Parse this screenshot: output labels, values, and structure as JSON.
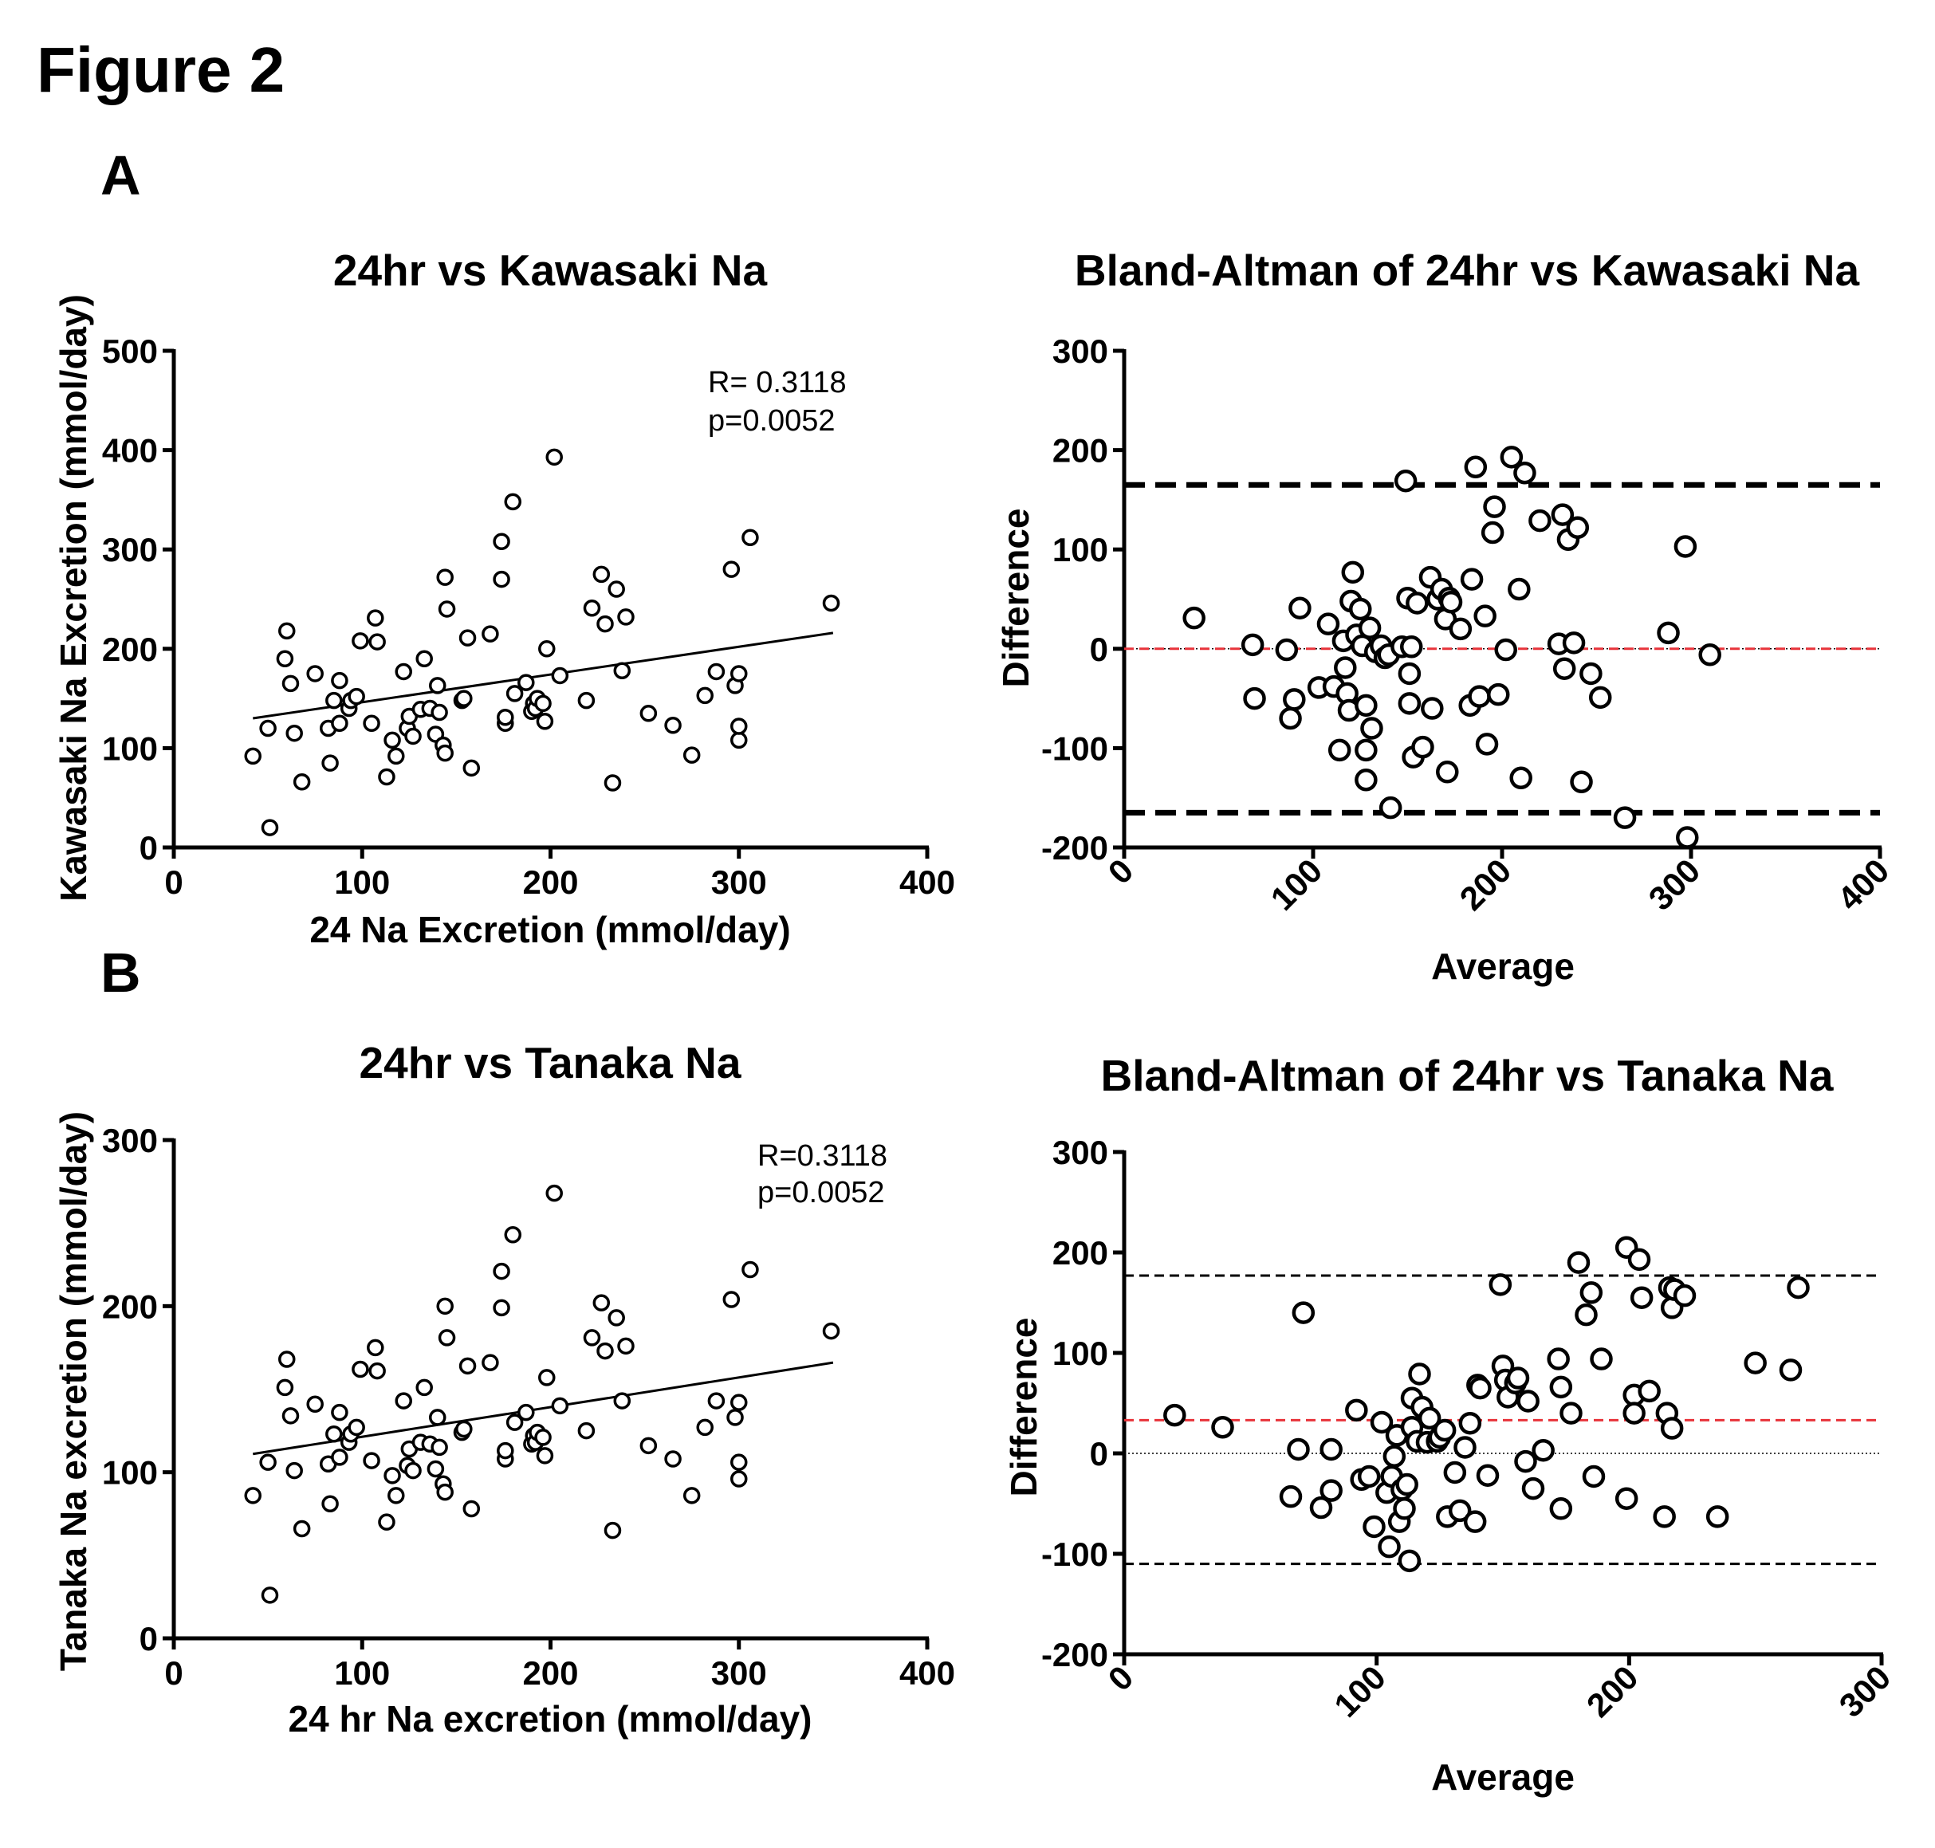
{
  "figure": {
    "title": "Figure 2",
    "panels": [
      "A",
      "B"
    ]
  },
  "chart_data": [
    {
      "id": "scatterA",
      "type": "scatter",
      "title": "24hr vs Kawasaki Na",
      "xlabel": "24 Na Excretion (mmol/day)",
      "ylabel": "Kawasaki Na Excretion (mmol/day)",
      "xlim": [
        0,
        400
      ],
      "ylim": [
        0,
        500
      ],
      "xticks": [
        0,
        100,
        200,
        300,
        400
      ],
      "yticks": [
        0,
        100,
        200,
        300,
        400,
        500
      ],
      "annotations": [
        "R= 0.3118",
        "p=0.0052"
      ],
      "regression": {
        "x": [
          42,
          350
        ],
        "y": [
          130,
          216
        ]
      },
      "points": [
        [
          42,
          92
        ],
        [
          50,
          120
        ],
        [
          51,
          20
        ],
        [
          59,
          190
        ],
        [
          60,
          218
        ],
        [
          62,
          165
        ],
        [
          64,
          115
        ],
        [
          68,
          66
        ],
        [
          75,
          175
        ],
        [
          82,
          120
        ],
        [
          83,
          85
        ],
        [
          85,
          148
        ],
        [
          88,
          125
        ],
        [
          88,
          168
        ],
        [
          93,
          140
        ],
        [
          94,
          148
        ],
        [
          97,
          152
        ],
        [
          99,
          208
        ],
        [
          105,
          125
        ],
        [
          107,
          231
        ],
        [
          108,
          207
        ],
        [
          113,
          71
        ],
        [
          116,
          108
        ],
        [
          118,
          92
        ],
        [
          122,
          177
        ],
        [
          124,
          120
        ],
        [
          125,
          132
        ],
        [
          127,
          112
        ],
        [
          131,
          139
        ],
        [
          133,
          190
        ],
        [
          136,
          140
        ],
        [
          139,
          114
        ],
        [
          140,
          163
        ],
        [
          141,
          136
        ],
        [
          143,
          103
        ],
        [
          144,
          95
        ],
        [
          144,
          272
        ],
        [
          145,
          240
        ],
        [
          153,
          148
        ],
        [
          154,
          150
        ],
        [
          156,
          211
        ],
        [
          158,
          80
        ],
        [
          168,
          215
        ],
        [
          174,
          308
        ],
        [
          174,
          270
        ],
        [
          176,
          125
        ],
        [
          176,
          131
        ],
        [
          180,
          348
        ],
        [
          181,
          155
        ],
        [
          187,
          166
        ],
        [
          190,
          137
        ],
        [
          191,
          145
        ],
        [
          192,
          140
        ],
        [
          193,
          150
        ],
        [
          196,
          145
        ],
        [
          197,
          127
        ],
        [
          198,
          200
        ],
        [
          202,
          393
        ],
        [
          205,
          173
        ],
        [
          219,
          148
        ],
        [
          222,
          241
        ],
        [
          227,
          275
        ],
        [
          229,
          225
        ],
        [
          233,
          65
        ],
        [
          235,
          260
        ],
        [
          238,
          178
        ],
        [
          240,
          232
        ],
        [
          252,
          135
        ],
        [
          265,
          123
        ],
        [
          275,
          93
        ],
        [
          282,
          153
        ],
        [
          288,
          177
        ],
        [
          296,
          280
        ],
        [
          298,
          163
        ],
        [
          300,
          175
        ],
        [
          300,
          108
        ],
        [
          300,
          122
        ],
        [
          306,
          312
        ],
        [
          349,
          246
        ]
      ]
    },
    {
      "id": "baA",
      "type": "scatter",
      "title": "Bland-Altman of 24hr vs Kawasaki Na",
      "xlabel": "Average",
      "ylabel": "Difference",
      "xlim": [
        0,
        400
      ],
      "ylim": [
        -200,
        300
      ],
      "xticks": [
        0,
        100,
        200,
        300,
        400
      ],
      "yticks": [
        -200,
        -100,
        0,
        100,
        200,
        300
      ],
      "mean_line": 0,
      "limits_of_agreement": [
        165,
        -165
      ],
      "points": [
        [
          37,
          31
        ],
        [
          68,
          4
        ],
        [
          69,
          -50
        ],
        [
          86,
          -1
        ],
        [
          88,
          -70
        ],
        [
          90,
          -51
        ],
        [
          93,
          41
        ],
        [
          103,
          -39
        ],
        [
          108,
          25
        ],
        [
          111,
          -38
        ],
        [
          114,
          -102
        ],
        [
          116,
          8
        ],
        [
          117,
          -19
        ],
        [
          118,
          -45
        ],
        [
          119,
          -62
        ],
        [
          120,
          48
        ],
        [
          121,
          77
        ],
        [
          123,
          14
        ],
        [
          125,
          40
        ],
        [
          126,
          3
        ],
        [
          128,
          -57
        ],
        [
          128,
          -102
        ],
        [
          128,
          -132
        ],
        [
          130,
          21
        ],
        [
          131,
          -80
        ],
        [
          133,
          -3
        ],
        [
          136,
          3
        ],
        [
          138,
          -9
        ],
        [
          140,
          -6
        ],
        [
          141,
          -160
        ],
        [
          147,
          2
        ],
        [
          149,
          169
        ],
        [
          150,
          51
        ],
        [
          151,
          -25
        ],
        [
          151,
          -55
        ],
        [
          152,
          2
        ],
        [
          153,
          -109
        ],
        [
          155,
          46
        ],
        [
          158,
          -99
        ],
        [
          162,
          72
        ],
        [
          163,
          -60
        ],
        [
          166,
          50
        ],
        [
          168,
          60
        ],
        [
          170,
          30
        ],
        [
          171,
          -124
        ],
        [
          172,
          51
        ],
        [
          173,
          47
        ],
        [
          178,
          20
        ],
        [
          183,
          -57
        ],
        [
          184,
          70
        ],
        [
          186,
          183
        ],
        [
          188,
          -48
        ],
        [
          191,
          33
        ],
        [
          192,
          -96
        ],
        [
          195,
          117
        ],
        [
          196,
          143
        ],
        [
          198,
          -46
        ],
        [
          202,
          -1
        ],
        [
          205,
          193
        ],
        [
          209,
          60
        ],
        [
          210,
          -130
        ],
        [
          212,
          177
        ],
        [
          220,
          129
        ],
        [
          230,
          5
        ],
        [
          232,
          135
        ],
        [
          233,
          -20
        ],
        [
          235,
          110
        ],
        [
          238,
          6
        ],
        [
          240,
          122
        ],
        [
          242,
          -134
        ],
        [
          247,
          -25
        ],
        [
          252,
          -49
        ],
        [
          265,
          -170
        ],
        [
          288,
          16
        ],
        [
          297,
          103
        ],
        [
          298,
          -190
        ],
        [
          310,
          -6
        ]
      ]
    },
    {
      "id": "scatterB",
      "type": "scatter",
      "title": "24hr vs Tanaka Na",
      "xlabel": "24 hr Na excretion (mmol/day)",
      "ylabel": "Tanaka Na excretion (mmol/day)",
      "xlim": [
        0,
        400
      ],
      "ylim": [
        0,
        300
      ],
      "xticks": [
        0,
        100,
        200,
        300,
        400
      ],
      "yticks": [
        0,
        100,
        200,
        300
      ],
      "annotations": [
        "R=0.3118",
        "p=0.0052"
      ],
      "regression": {
        "x": [
          42,
          350
        ],
        "y": [
          111,
          166
        ]
      },
      "points": [
        [
          42,
          86
        ],
        [
          50,
          106
        ],
        [
          51,
          26
        ],
        [
          59,
          151
        ],
        [
          60,
          168
        ],
        [
          62,
          134
        ],
        [
          64,
          101
        ],
        [
          68,
          66
        ],
        [
          75,
          141
        ],
        [
          82,
          105
        ],
        [
          83,
          81
        ],
        [
          85,
          123
        ],
        [
          88,
          109
        ],
        [
          88,
          136
        ],
        [
          93,
          118
        ],
        [
          94,
          123
        ],
        [
          97,
          127
        ],
        [
          99,
          162
        ],
        [
          105,
          107
        ],
        [
          107,
          175
        ],
        [
          108,
          161
        ],
        [
          113,
          70
        ],
        [
          116,
          98
        ],
        [
          118,
          86
        ],
        [
          122,
          143
        ],
        [
          124,
          104
        ],
        [
          125,
          114
        ],
        [
          127,
          101
        ],
        [
          131,
          118
        ],
        [
          133,
          151
        ],
        [
          136,
          117
        ],
        [
          139,
          102
        ],
        [
          140,
          133
        ],
        [
          141,
          115
        ],
        [
          143,
          93
        ],
        [
          144,
          88
        ],
        [
          144,
          200
        ],
        [
          145,
          181
        ],
        [
          153,
          124
        ],
        [
          154,
          126
        ],
        [
          156,
          164
        ],
        [
          158,
          78
        ],
        [
          168,
          166
        ],
        [
          174,
          221
        ],
        [
          174,
          199
        ],
        [
          176,
          108
        ],
        [
          176,
          113
        ],
        [
          180,
          243
        ],
        [
          181,
          130
        ],
        [
          187,
          136
        ],
        [
          190,
          117
        ],
        [
          191,
          122
        ],
        [
          192,
          118
        ],
        [
          193,
          124
        ],
        [
          196,
          121
        ],
        [
          197,
          110
        ],
        [
          198,
          157
        ],
        [
          202,
          268
        ],
        [
          205,
          140
        ],
        [
          219,
          125
        ],
        [
          222,
          181
        ],
        [
          227,
          202
        ],
        [
          229,
          173
        ],
        [
          233,
          65
        ],
        [
          235,
          193
        ],
        [
          238,
          143
        ],
        [
          240,
          176
        ],
        [
          252,
          116
        ],
        [
          265,
          108
        ],
        [
          275,
          86
        ],
        [
          282,
          127
        ],
        [
          288,
          143
        ],
        [
          296,
          204
        ],
        [
          298,
          133
        ],
        [
          300,
          142
        ],
        [
          300,
          96
        ],
        [
          300,
          106
        ],
        [
          306,
          222
        ],
        [
          349,
          185
        ]
      ]
    },
    {
      "id": "baB",
      "type": "scatter",
      "title": "Bland-Altman of 24hr vs Tanaka Na",
      "xlabel": "Average",
      "ylabel": "Difference",
      "xlim": [
        0,
        300
      ],
      "ylim": [
        -200,
        300
      ],
      "xticks": [
        0,
        100,
        200,
        300
      ],
      "yticks": [
        -200,
        -100,
        0,
        100,
        200,
        300
      ],
      "zero_line": 0,
      "mean_line": 33,
      "limits_of_agreement": [
        177,
        -110
      ],
      "points": [
        [
          20,
          38
        ],
        [
          39,
          26
        ],
        [
          66,
          -43
        ],
        [
          69,
          4
        ],
        [
          71,
          140
        ],
        [
          78,
          -54
        ],
        [
          82,
          4
        ],
        [
          82,
          -37
        ],
        [
          92,
          43
        ],
        [
          94,
          -26
        ],
        [
          97,
          -23
        ],
        [
          99,
          -73
        ],
        [
          102,
          31
        ],
        [
          104,
          -39
        ],
        [
          105,
          -93
        ],
        [
          106,
          -23
        ],
        [
          107,
          -3
        ],
        [
          108,
          18
        ],
        [
          109,
          -68
        ],
        [
          110,
          -36
        ],
        [
          111,
          -55
        ],
        [
          112,
          -31
        ],
        [
          113,
          -107
        ],
        [
          114,
          55
        ],
        [
          114,
          26
        ],
        [
          116,
          12
        ],
        [
          117,
          79
        ],
        [
          118,
          46
        ],
        [
          120,
          11
        ],
        [
          121,
          35
        ],
        [
          124,
          12
        ],
        [
          125,
          16
        ],
        [
          127,
          23
        ],
        [
          128,
          -63
        ],
        [
          131,
          -19
        ],
        [
          133,
          -57
        ],
        [
          135,
          6
        ],
        [
          137,
          30
        ],
        [
          139,
          -68
        ],
        [
          140,
          68
        ],
        [
          141,
          65
        ],
        [
          144,
          -22
        ],
        [
          149,
          168
        ],
        [
          150,
          87
        ],
        [
          151,
          73
        ],
        [
          152,
          56
        ],
        [
          155,
          70
        ],
        [
          156,
          75
        ],
        [
          159,
          -8
        ],
        [
          160,
          52
        ],
        [
          162,
          -35
        ],
        [
          166,
          3
        ],
        [
          172,
          94
        ],
        [
          173,
          66
        ],
        [
          173,
          -55
        ],
        [
          177,
          40
        ],
        [
          180,
          190
        ],
        [
          183,
          138
        ],
        [
          185,
          160
        ],
        [
          186,
          -23
        ],
        [
          189,
          94
        ],
        [
          199,
          -45
        ],
        [
          199,
          205
        ],
        [
          202,
          58
        ],
        [
          202,
          40
        ],
        [
          204,
          193
        ],
        [
          205,
          155
        ],
        [
          208,
          62
        ],
        [
          214,
          -63
        ],
        [
          215,
          40
        ],
        [
          216,
          165
        ],
        [
          217,
          25
        ],
        [
          217,
          145
        ],
        [
          218,
          163
        ],
        [
          222,
          157
        ],
        [
          235,
          -63
        ],
        [
          250,
          90
        ],
        [
          264,
          83
        ],
        [
          267,
          165
        ]
      ]
    }
  ]
}
